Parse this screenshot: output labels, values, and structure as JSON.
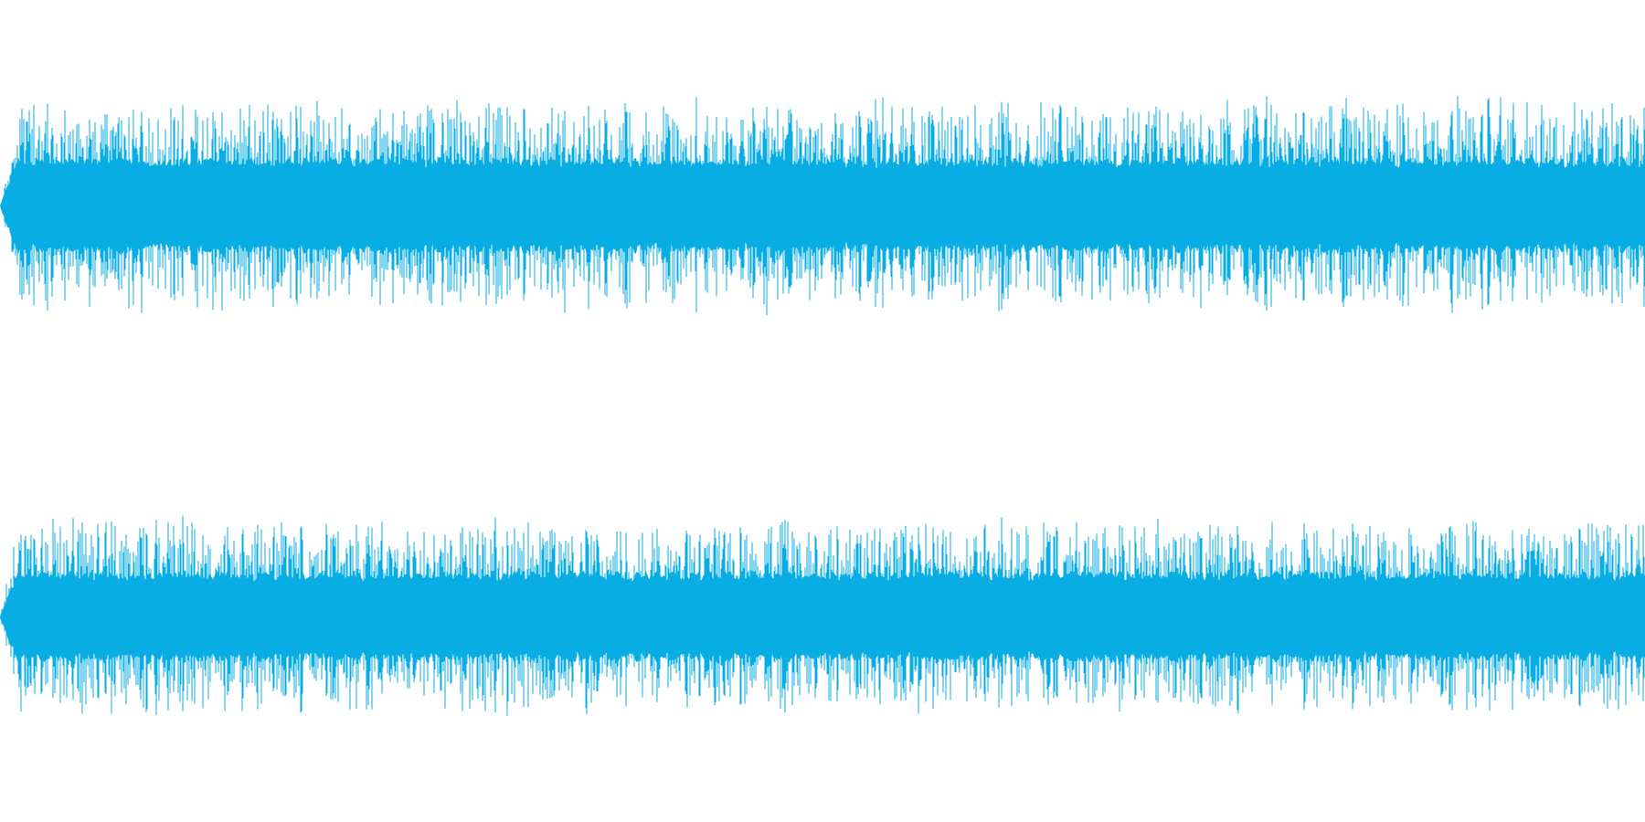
{
  "waveform": {
    "color": "#08ADE3",
    "background": "#FFFFFF",
    "channel_count": 2,
    "channels": [
      {
        "name": "",
        "peak_amplitude": 0.92,
        "typical_amplitude": 0.55
      },
      {
        "name": "",
        "peak_amplitude": 0.84,
        "typical_amplitude": 0.52
      }
    ]
  }
}
